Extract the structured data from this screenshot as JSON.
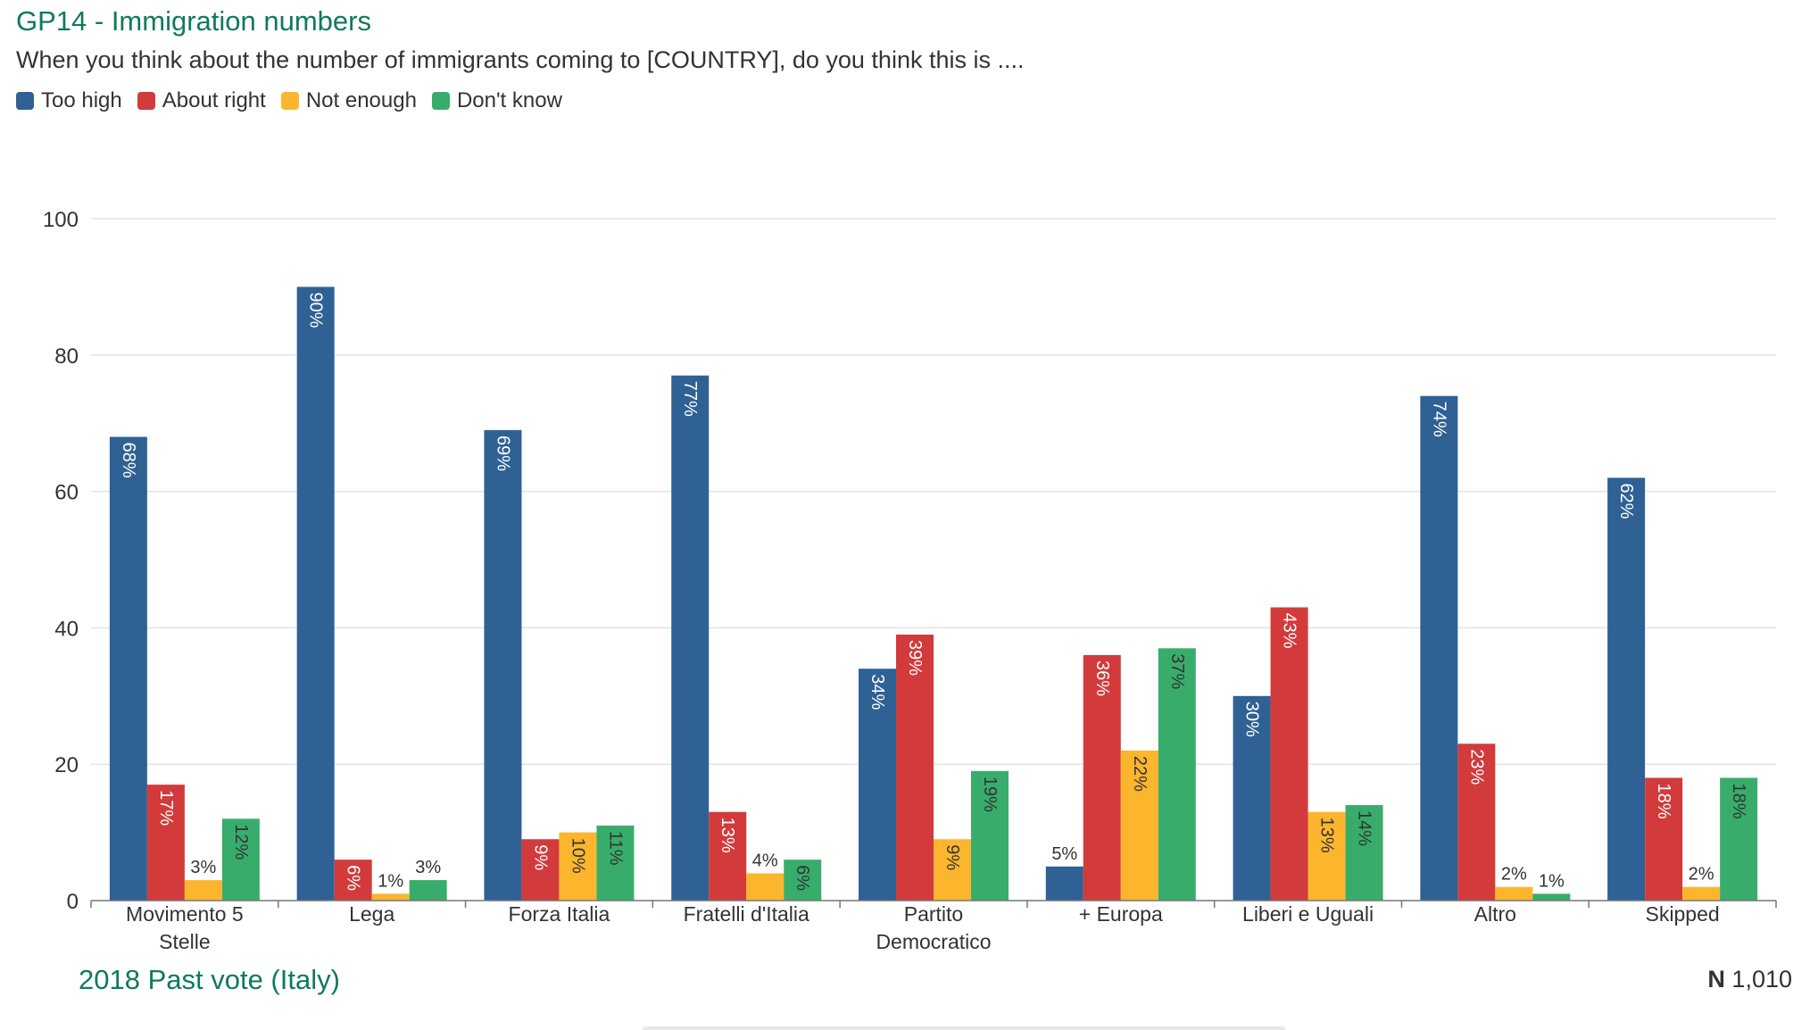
{
  "header": {
    "title": "GP14 - Immigration numbers",
    "subtitle": "When you think about the number of immigrants coming to [COUNTRY], do you think this is ...."
  },
  "footer": {
    "group_label": "2018 Past vote (Italy)",
    "n_label": "N",
    "n_value": "1,010"
  },
  "chart_data": {
    "type": "bar",
    "title": "GP14 - Immigration numbers",
    "subtitle": "When you think about the number of immigrants coming to [COUNTRY], do you think this is ....",
    "xlabel": "2018 Past vote (Italy)",
    "ylabel": "",
    "ylim": [
      0,
      100
    ],
    "yticks": [
      0,
      20,
      40,
      60,
      80,
      100
    ],
    "grid": true,
    "legend_position": "top-left",
    "categories": [
      "Movimento 5 Stelle",
      "Lega",
      "Forza Italia",
      "Fratelli d'Italia",
      "Partito Democratico",
      "+ Europa",
      "Liberi e Uguali",
      "Altro",
      "Skipped"
    ],
    "category_lines": [
      [
        "Movimento 5",
        "Stelle"
      ],
      [
        "Lega"
      ],
      [
        "Forza Italia"
      ],
      [
        "Fratelli d'Italia"
      ],
      [
        "Partito",
        "Democratico"
      ],
      [
        "+ Europa"
      ],
      [
        "Liberi e Uguali"
      ],
      [
        "Altro"
      ],
      [
        "Skipped"
      ]
    ],
    "series": [
      {
        "name": "Too high",
        "color": "#2f6195",
        "values": [
          68,
          90,
          69,
          77,
          34,
          5,
          30,
          74,
          62
        ],
        "labels": [
          "68%",
          "90%",
          "69%",
          "77%",
          "34%",
          "5%",
          "30%",
          "74%",
          "62%"
        ]
      },
      {
        "name": "About right",
        "color": "#d23a3b",
        "values": [
          17,
          6,
          9,
          13,
          39,
          36,
          43,
          23,
          18
        ],
        "labels": [
          "17%",
          "6%",
          "9%",
          "13%",
          "39%",
          "36%",
          "43%",
          "23%",
          "18%"
        ]
      },
      {
        "name": "Not enough",
        "color": "#fbb62e",
        "values": [
          3,
          1,
          10,
          4,
          9,
          22,
          13,
          2,
          2
        ],
        "labels": [
          "3%",
          "1%",
          "10%",
          "4%",
          "9%",
          "22%",
          "13%",
          "2%",
          "2%"
        ]
      },
      {
        "name": "Don't know",
        "color": "#38ad6b",
        "values": [
          12,
          3,
          11,
          6,
          19,
          37,
          14,
          1,
          18
        ],
        "labels": [
          "12%",
          "3%",
          "11%",
          "6%",
          "19%",
          "37%",
          "14%",
          "1%",
          "18%"
        ]
      }
    ]
  }
}
